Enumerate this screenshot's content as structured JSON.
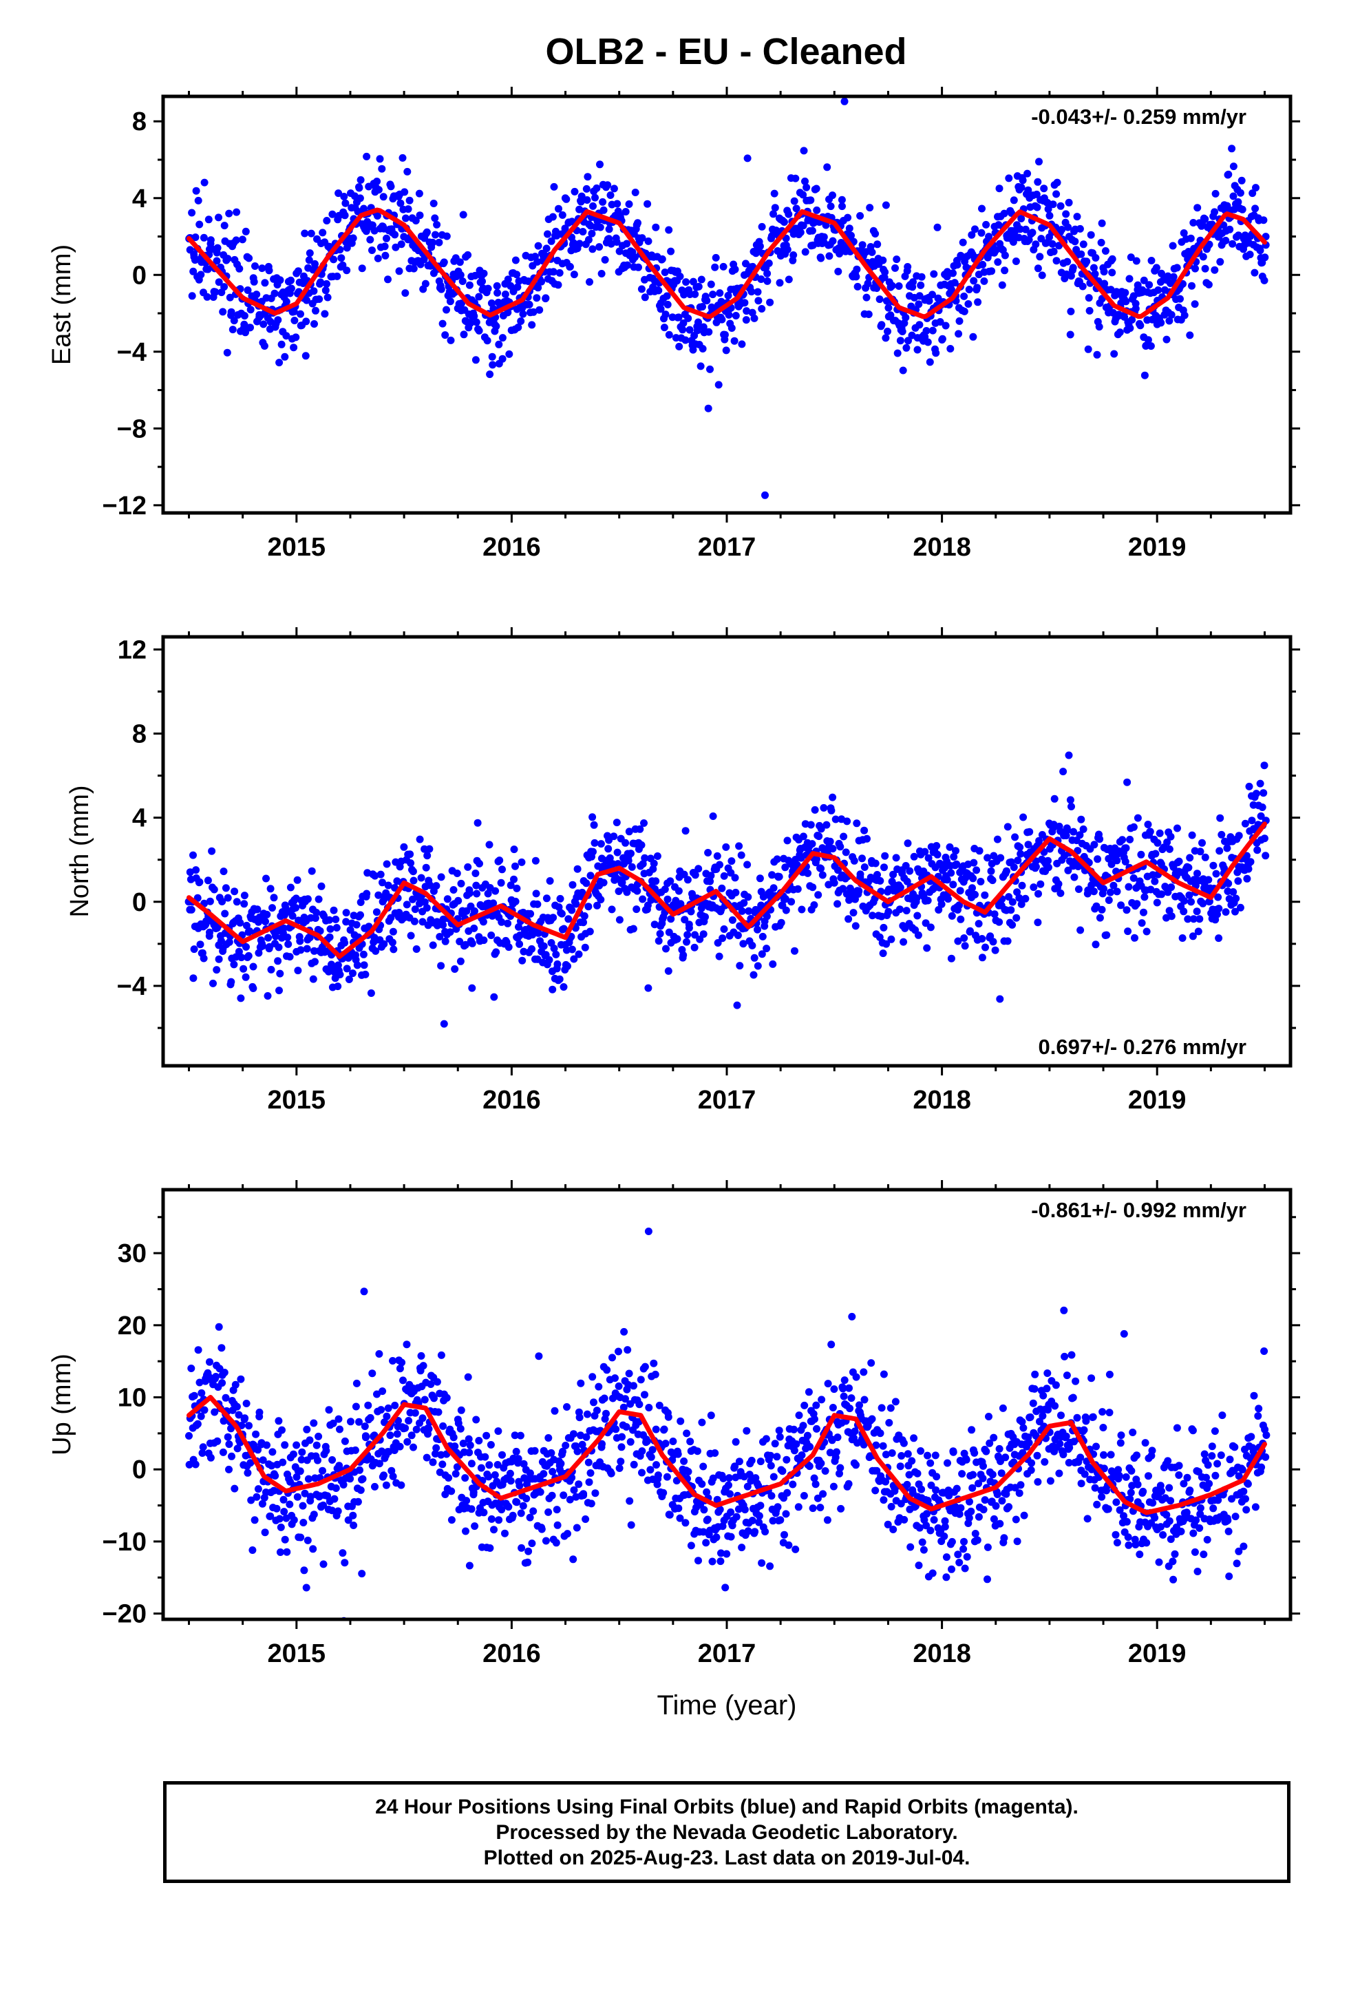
{
  "title": "OLB2  - EU - Cleaned",
  "footer": {
    "lines": [
      "24 Hour Positions Using Final Orbits (blue) and Rapid Orbits (magenta).",
      "Processed by the Nevada Geodetic Laboratory.",
      "Plotted on 2025-Aug-23. Last data on 2019-Jul-04."
    ]
  },
  "colors": {
    "data": "#0000ff",
    "model": "#ff0000",
    "frame": "#000000"
  },
  "chart_data": [
    {
      "type": "scatter",
      "ylabel": "East (mm)",
      "xlabel": "",
      "xlim": [
        2014.38,
        2019.62
      ],
      "ylim": [
        -12.4,
        9.3
      ],
      "xticks": [
        2015,
        2016,
        2017,
        2018,
        2019
      ],
      "xtick_labels": [
        "2015",
        "2016",
        "2017",
        "2018",
        "2019"
      ],
      "yticks": [
        -12,
        -8,
        -4,
        0,
        4,
        8
      ],
      "ytick_labels": [
        "−12",
        "−8",
        "−4",
        "0",
        "4",
        "8"
      ],
      "rate_label": "-0.043+/- 0.259 mm/yr",
      "rate_position": "top-right",
      "grid": false,
      "model": {
        "x": [
          2014.5,
          2014.62,
          2014.75,
          2014.9,
          2015.0,
          2015.15,
          2015.3,
          2015.38,
          2015.5,
          2015.65,
          2015.8,
          2015.9,
          2016.05,
          2016.2,
          2016.35,
          2016.5,
          2016.65,
          2016.8,
          2016.92,
          2017.05,
          2017.2,
          2017.35,
          2017.5,
          2017.65,
          2017.8,
          2017.92,
          2018.05,
          2018.2,
          2018.36,
          2018.5,
          2018.65,
          2018.8,
          2018.92,
          2019.05,
          2019.2,
          2019.32,
          2019.4,
          2019.5
        ],
        "y": [
          1.9,
          0.4,
          -1.2,
          -2.0,
          -1.5,
          1.0,
          3.1,
          3.4,
          2.6,
          0.5,
          -1.5,
          -2.1,
          -1.3,
          1.3,
          3.3,
          2.7,
          0.4,
          -1.7,
          -2.2,
          -1.2,
          1.3,
          3.3,
          2.7,
          0.4,
          -1.7,
          -2.2,
          -1.2,
          1.3,
          3.3,
          2.6,
          0.4,
          -1.6,
          -2.2,
          -1.2,
          1.4,
          3.2,
          2.9,
          1.7
        ]
      }
    },
    {
      "type": "scatter",
      "ylabel": "North (mm)",
      "xlabel": "",
      "xlim": [
        2014.38,
        2019.62
      ],
      "ylim": [
        -7.8,
        12.6
      ],
      "xticks": [
        2015,
        2016,
        2017,
        2018,
        2019
      ],
      "xtick_labels": [
        "2015",
        "2016",
        "2017",
        "2018",
        "2019"
      ],
      "yticks": [
        -4,
        0,
        4,
        8,
        12
      ],
      "ytick_labels": [
        "−4",
        "0",
        "4",
        "8",
        "12"
      ],
      "rate_label": "0.697+/- 0.276 mm/yr",
      "rate_position": "bottom-right",
      "grid": false,
      "model": {
        "x": [
          2014.5,
          2014.6,
          2014.75,
          2014.95,
          2015.1,
          2015.2,
          2015.35,
          2015.5,
          2015.6,
          2015.75,
          2015.95,
          2016.1,
          2016.25,
          2016.4,
          2016.5,
          2016.6,
          2016.75,
          2016.95,
          2017.1,
          2017.25,
          2017.4,
          2017.5,
          2017.6,
          2017.75,
          2017.95,
          2018.1,
          2018.2,
          2018.35,
          2018.5,
          2018.6,
          2018.75,
          2018.95,
          2019.1,
          2019.25,
          2019.35,
          2019.5
        ],
        "y": [
          0.2,
          -0.6,
          -1.9,
          -0.9,
          -1.6,
          -2.6,
          -1.4,
          0.9,
          0.4,
          -1.1,
          -0.2,
          -1.1,
          -1.7,
          1.3,
          1.6,
          1.0,
          -0.6,
          0.5,
          -1.2,
          0.4,
          2.3,
          2.1,
          1.0,
          0.0,
          1.2,
          0.0,
          -0.5,
          1.3,
          3.0,
          2.4,
          0.9,
          1.9,
          0.9,
          0.2,
          1.7,
          3.7
        ]
      }
    },
    {
      "type": "scatter",
      "ylabel": "Up (mm)",
      "xlabel": "Time (year)",
      "xlim": [
        2014.38,
        2019.62
      ],
      "ylim": [
        -20.8,
        38.8
      ],
      "xticks": [
        2015,
        2016,
        2017,
        2018,
        2019
      ],
      "xtick_labels": [
        "2015",
        "2016",
        "2017",
        "2018",
        "2019"
      ],
      "yticks": [
        -20,
        -10,
        0,
        10,
        20,
        30
      ],
      "ytick_labels": [
        "−20",
        "−10",
        "0",
        "10",
        "20",
        "30"
      ],
      "rate_label": "-0.861+/- 0.992 mm/yr",
      "rate_position": "top-right",
      "grid": false,
      "model": {
        "x": [
          2014.5,
          2014.6,
          2014.72,
          2014.85,
          2014.95,
          2015.1,
          2015.25,
          2015.4,
          2015.5,
          2015.6,
          2015.7,
          2015.85,
          2015.95,
          2016.1,
          2016.25,
          2016.4,
          2016.5,
          2016.6,
          2016.7,
          2016.85,
          2016.95,
          2017.1,
          2017.25,
          2017.4,
          2017.5,
          2017.6,
          2017.7,
          2017.85,
          2017.95,
          2018.1,
          2018.25,
          2018.4,
          2018.5,
          2018.6,
          2018.7,
          2018.85,
          2018.95,
          2019.1,
          2019.25,
          2019.4,
          2019.5
        ],
        "y": [
          7.5,
          10.0,
          6.0,
          -1.0,
          -3.0,
          -2.0,
          0.0,
          5.0,
          9.0,
          8.5,
          3.0,
          -2.0,
          -4.0,
          -2.5,
          -1.0,
          4.0,
          8.0,
          7.5,
          2.0,
          -3.5,
          -5.0,
          -3.5,
          -2.0,
          2.0,
          7.5,
          7.0,
          1.5,
          -4.0,
          -5.5,
          -4.0,
          -2.5,
          2.0,
          6.0,
          6.5,
          1.0,
          -4.5,
          -6.0,
          -5.0,
          -3.5,
          -1.5,
          3.5
        ]
      }
    }
  ]
}
